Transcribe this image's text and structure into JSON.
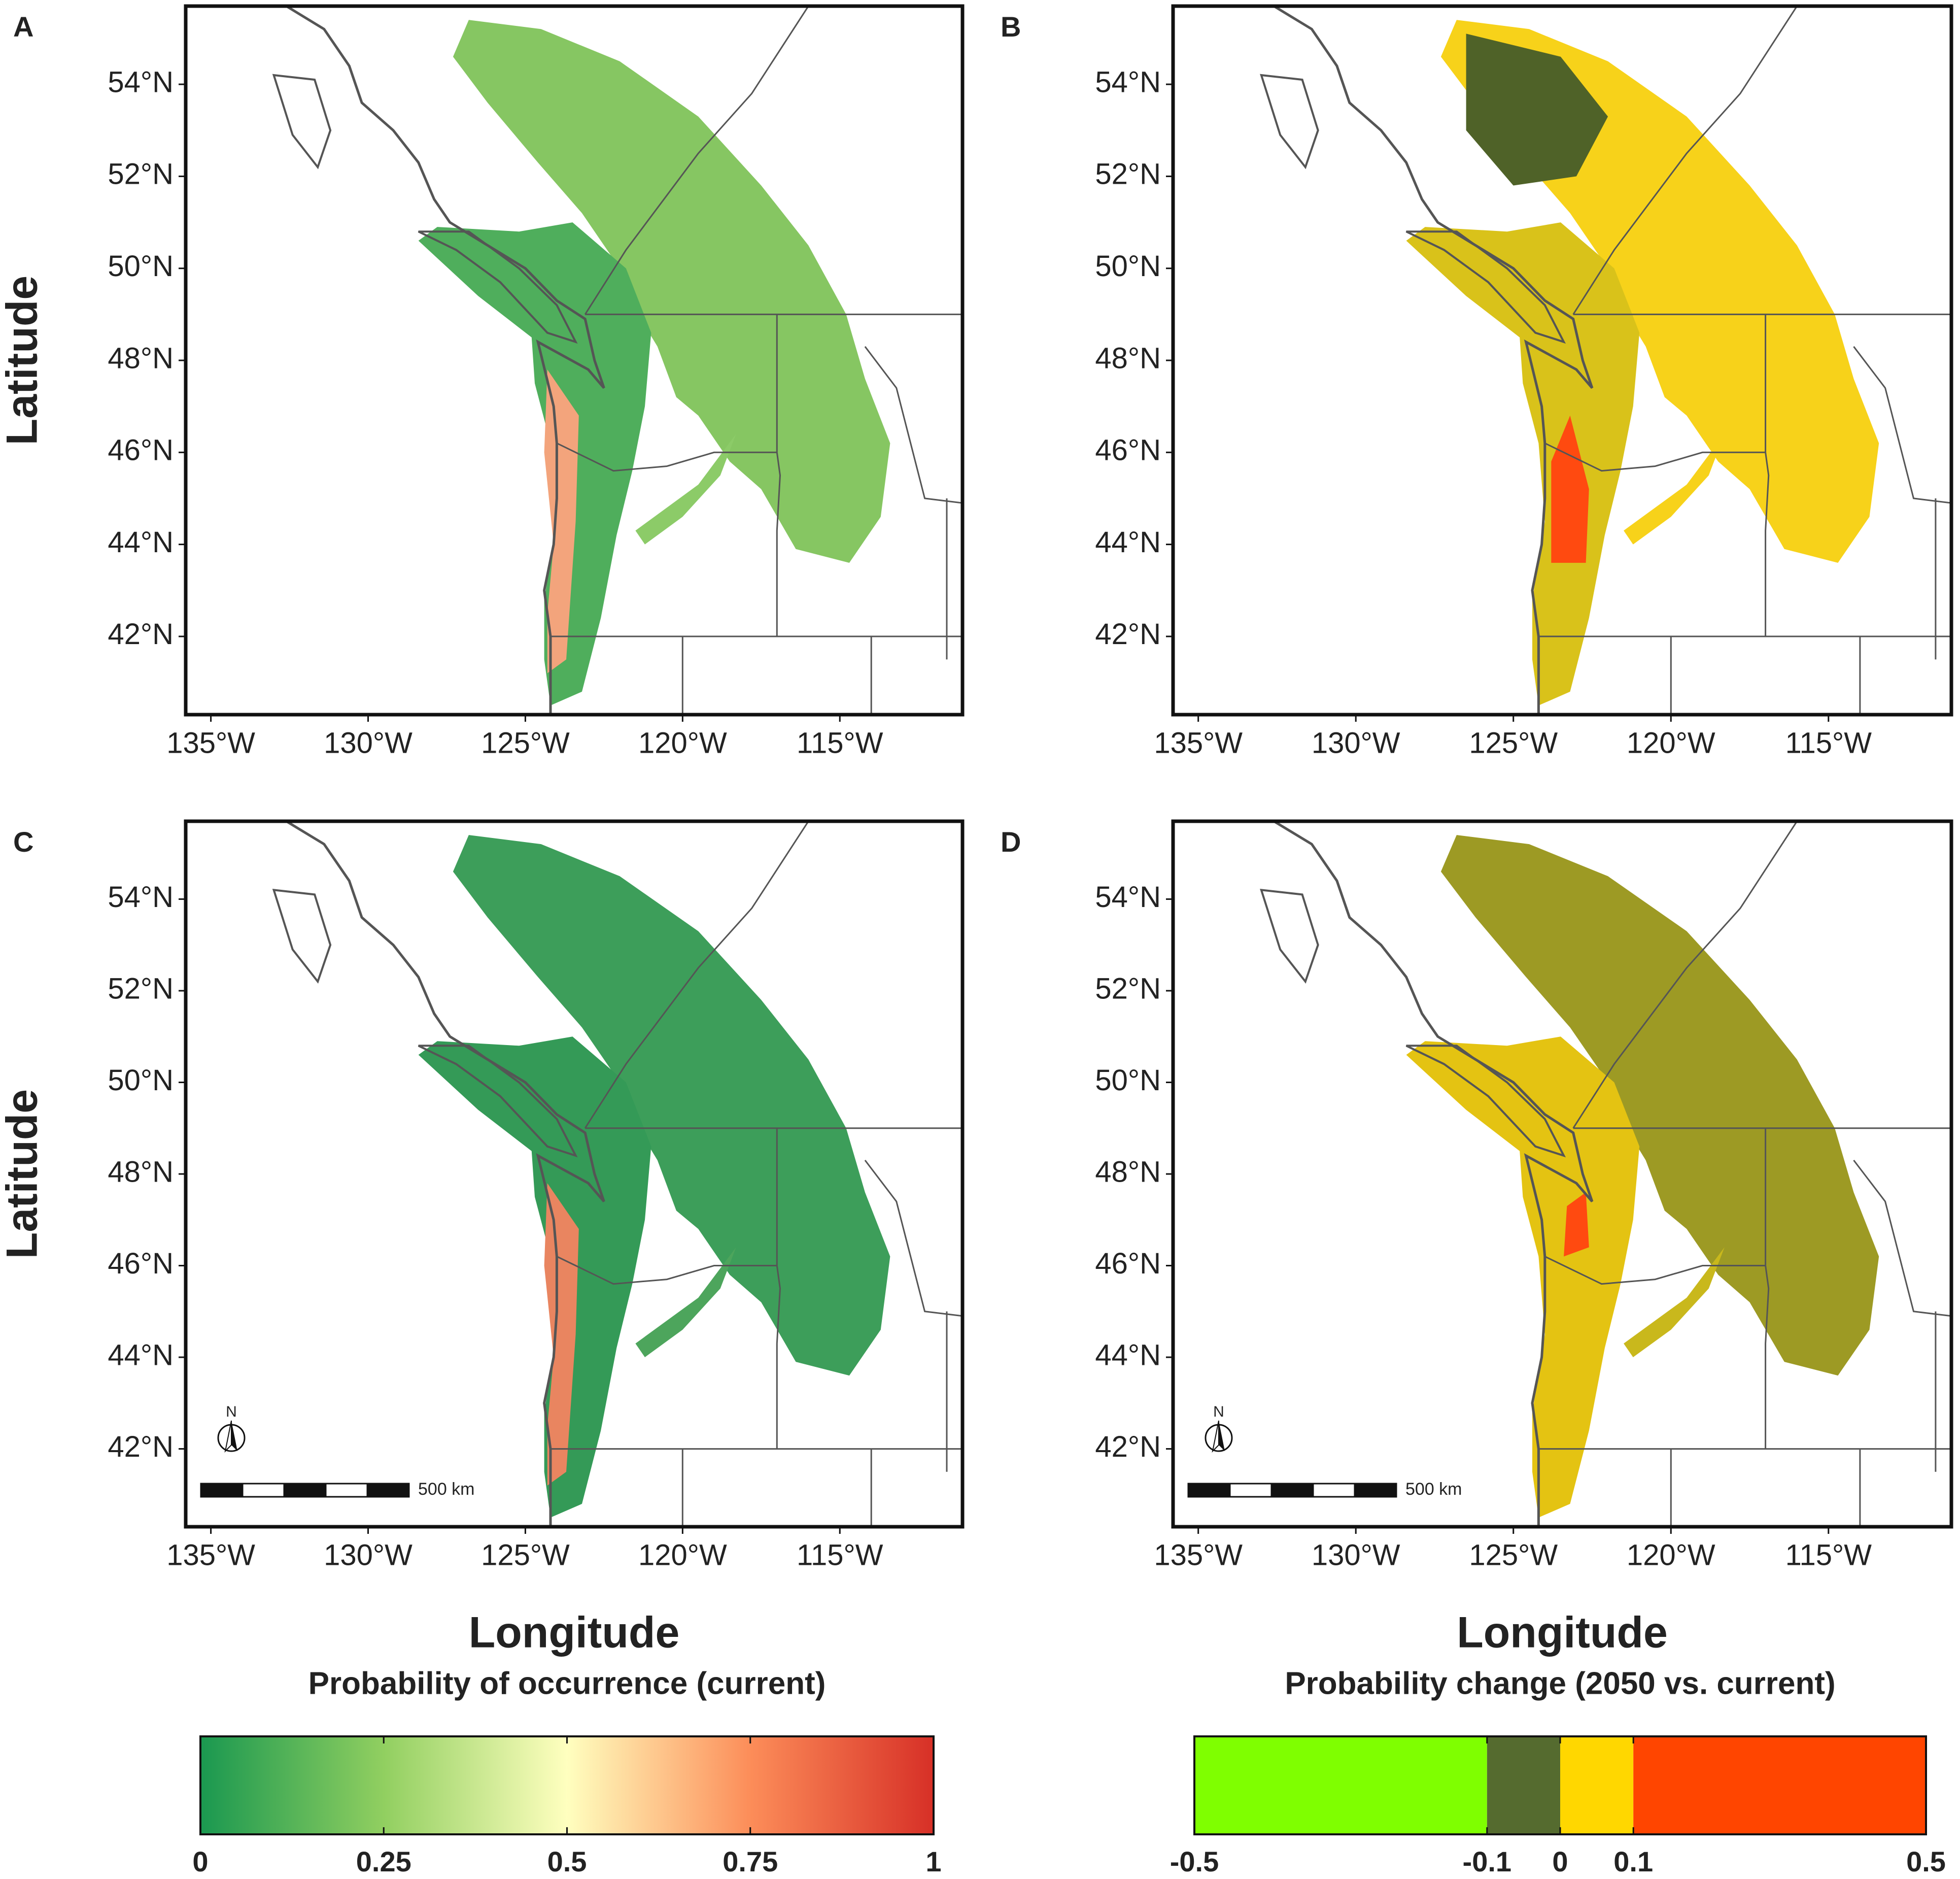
{
  "panels": [
    {
      "label": "A",
      "ylabel": "Latitude",
      "xlim": [
        -135.8,
        -111.1
      ],
      "ylim": [
        40.3,
        55.7
      ],
      "xticks": [
        {
          "value": -135,
          "label": "135°W"
        },
        {
          "value": -130,
          "label": "130°W"
        },
        {
          "value": -125,
          "label": "125°W"
        },
        {
          "value": -120,
          "label": "120°W"
        },
        {
          "value": -115,
          "label": "115°W"
        }
      ],
      "yticks": [
        {
          "value": 42,
          "label": "42°N"
        },
        {
          "value": 44,
          "label": "44°N"
        },
        {
          "value": 46,
          "label": "46°N"
        },
        {
          "value": 48,
          "label": "48°N"
        },
        {
          "value": 50,
          "label": "50°N"
        },
        {
          "value": 52,
          "label": "52°N"
        },
        {
          "value": 54,
          "label": "54°N"
        }
      ]
    },
    {
      "label": "B",
      "xlim": [
        -135.8,
        -111.1
      ],
      "ylim": [
        40.3,
        55.7
      ],
      "xticks": [
        {
          "value": -135,
          "label": "135°W"
        },
        {
          "value": -130,
          "label": "130°W"
        },
        {
          "value": -125,
          "label": "125°W"
        },
        {
          "value": -120,
          "label": "120°W"
        },
        {
          "value": -115,
          "label": "115°W"
        }
      ],
      "yticks": [
        {
          "value": 42,
          "label": "42°N"
        },
        {
          "value": 44,
          "label": "44°N"
        },
        {
          "value": 46,
          "label": "46°N"
        },
        {
          "value": 48,
          "label": "48°N"
        },
        {
          "value": 50,
          "label": "50°N"
        },
        {
          "value": 52,
          "label": "52°N"
        },
        {
          "value": 54,
          "label": "54°N"
        }
      ]
    },
    {
      "label": "C",
      "ylabel": "Latitude",
      "xlabel": "Longitude",
      "north": "N",
      "scale_bar": "500 km",
      "xlim": [
        -135.8,
        -111.1
      ],
      "ylim": [
        40.3,
        55.7
      ],
      "xticks": [
        {
          "value": -135,
          "label": "135°W"
        },
        {
          "value": -130,
          "label": "130°W"
        },
        {
          "value": -125,
          "label": "125°W"
        },
        {
          "value": -120,
          "label": "120°W"
        },
        {
          "value": -115,
          "label": "115°W"
        }
      ],
      "yticks": [
        {
          "value": 42,
          "label": "42°N"
        },
        {
          "value": 44,
          "label": "44°N"
        },
        {
          "value": 46,
          "label": "46°N"
        },
        {
          "value": 48,
          "label": "48°N"
        },
        {
          "value": 50,
          "label": "50°N"
        },
        {
          "value": 52,
          "label": "52°N"
        },
        {
          "value": 54,
          "label": "54°N"
        }
      ]
    },
    {
      "label": "D",
      "xlabel": "Longitude",
      "north": "N",
      "scale_bar": "500 km",
      "xlim": [
        -135.8,
        -111.1
      ],
      "ylim": [
        40.3,
        55.7
      ],
      "xticks": [
        {
          "value": -135,
          "label": "135°W"
        },
        {
          "value": -130,
          "label": "130°W"
        },
        {
          "value": -125,
          "label": "125°W"
        },
        {
          "value": -120,
          "label": "120°W"
        },
        {
          "value": -115,
          "label": "115°W"
        }
      ],
      "yticks": [
        {
          "value": 42,
          "label": "42°N"
        },
        {
          "value": 44,
          "label": "44°N"
        },
        {
          "value": 46,
          "label": "46°N"
        },
        {
          "value": 48,
          "label": "48°N"
        },
        {
          "value": 50,
          "label": "50°N"
        },
        {
          "value": 52,
          "label": "52°N"
        },
        {
          "value": 54,
          "label": "54°N"
        }
      ]
    }
  ],
  "legends": [
    {
      "title": "Probability of occurrence (current)",
      "lim": [
        0,
        1
      ],
      "ticks": [
        0,
        0.25,
        0.5,
        0.75,
        1
      ],
      "colors": [
        "#1a9850",
        "#91cf60",
        "#ffffbf",
        "#fc8d59",
        "#d73027"
      ]
    },
    {
      "title": "Probability change (2050 vs. current)",
      "lim": [
        -0.5,
        0.5
      ],
      "ticks": [
        -0.5,
        -0.1,
        0,
        0.1,
        0.5
      ],
      "colors": [
        "#7fff00",
        "#556b2f",
        "#ffd700",
        "#ff4500"
      ]
    }
  ]
}
